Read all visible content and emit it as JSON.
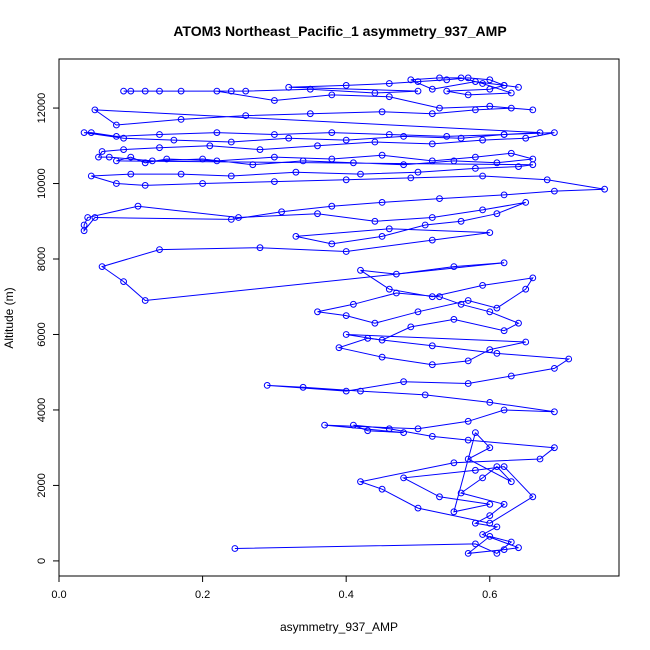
{
  "chart_data": {
    "type": "scatter",
    "title": "ATOM3 Northeast_Pacific_1 asymmetry_937_AMP",
    "xlabel": "asymmetry_937_AMP",
    "ylabel": "Altitude (m)",
    "xlim": [
      0.0,
      0.78
    ],
    "ylim": [
      -400,
      13300
    ],
    "xticks": [
      0.0,
      0.2,
      0.4,
      0.6
    ],
    "xtick_labels": [
      "0.0",
      "0.2",
      "0.4",
      "0.6"
    ],
    "yticks": [
      0,
      2000,
      4000,
      6000,
      8000,
      10000,
      12000
    ],
    "ytick_labels": [
      "0",
      "2000",
      "4000",
      "6000",
      "8000",
      "10000",
      "12000"
    ],
    "grid": false,
    "legend": "none",
    "color": "#0000ff",
    "markers": "open circles connected by lines",
    "series": [
      {
        "x": [
          0.245,
          0.58,
          0.61,
          0.63,
          0.6,
          0.57,
          0.62,
          0.64,
          0.59,
          0.61,
          0.58,
          0.6,
          0.62,
          0.56,
          0.59,
          0.61,
          0.63,
          0.57,
          0.6,
          0.58
        ],
        "y": [
          330,
          450,
          200,
          500,
          650,
          200,
          300,
          350,
          700,
          900,
          1000,
          1200,
          1500,
          1800,
          2200,
          2500,
          2100,
          2700,
          3000,
          3400
        ]
      },
      {
        "x": [
          0.55,
          0.6,
          0.53,
          0.48,
          0.58,
          0.62,
          0.66,
          0.6,
          0.5,
          0.45,
          0.42,
          0.55,
          0.67,
          0.69,
          0.57,
          0.52,
          0.46,
          0.41,
          0.43,
          0.48
        ],
        "y": [
          1300,
          1500,
          1700,
          2200,
          2400,
          2500,
          1700,
          1000,
          1400,
          1900,
          2100,
          2600,
          2700,
          3000,
          3200,
          3300,
          3500,
          3600,
          3450,
          3400
        ]
      },
      {
        "x": [
          0.37,
          0.5,
          0.57,
          0.62,
          0.69,
          0.6,
          0.51,
          0.42,
          0.34,
          0.29,
          0.4,
          0.48,
          0.57,
          0.63,
          0.69,
          0.71,
          0.61,
          0.52,
          0.43,
          0.39,
          0.45,
          0.52,
          0.57,
          0.6,
          0.65
        ],
        "y": [
          3600,
          3500,
          3700,
          4000,
          3950,
          4200,
          4400,
          4500,
          4600,
          4650,
          4500,
          4750,
          4700,
          4900,
          5100,
          5350,
          5500,
          5700,
          5900,
          5650,
          5400,
          5200,
          5300,
          5600,
          5800
        ]
      },
      {
        "x": [
          0.4,
          0.45,
          0.49,
          0.55,
          0.62,
          0.64,
          0.6,
          0.56,
          0.53,
          0.47,
          0.41,
          0.36,
          0.4,
          0.44,
          0.5,
          0.57,
          0.61,
          0.65,
          0.66,
          0.59,
          0.52,
          0.46,
          0.42,
          0.47,
          0.55,
          0.62
        ],
        "y": [
          6000,
          5850,
          6200,
          6400,
          6100,
          6300,
          6600,
          6800,
          7000,
          7100,
          6800,
          6600,
          6500,
          6300,
          6600,
          6900,
          6700,
          7200,
          7500,
          7300,
          7000,
          7200,
          7700,
          7600,
          7800,
          7900
        ]
      },
      {
        "x": [
          0.12,
          0.09,
          0.06,
          0.14,
          0.28,
          0.4,
          0.52,
          0.6,
          0.46,
          0.33,
          0.38,
          0.45,
          0.51,
          0.56,
          0.61,
          0.65,
          0.59,
          0.52,
          0.44,
          0.36,
          0.25,
          0.11,
          0.04,
          0.035,
          0.035,
          0.05
        ],
        "y": [
          6900,
          7400,
          7800,
          8250,
          8300,
          8200,
          8500,
          8700,
          8800,
          8600,
          8400,
          8600,
          8900,
          9000,
          9200,
          9500,
          9300,
          9100,
          9000,
          9200,
          9100,
          9400,
          9100,
          8900,
          8750,
          9100
        ]
      },
      {
        "x": [
          0.24,
          0.31,
          0.38,
          0.45,
          0.53,
          0.62,
          0.69,
          0.76,
          0.68,
          0.59,
          0.49,
          0.4,
          0.3,
          0.2,
          0.12,
          0.08,
          0.045,
          0.1,
          0.17,
          0.24,
          0.33,
          0.42,
          0.5,
          0.58,
          0.64,
          0.66
        ],
        "y": [
          9050,
          9250,
          9400,
          9500,
          9600,
          9700,
          9800,
          9850,
          10100,
          10200,
          10150,
          10100,
          10050,
          10000,
          9950,
          10000,
          10200,
          10250,
          10250,
          10200,
          10300,
          10250,
          10300,
          10400,
          10450,
          10500
        ]
      },
      {
        "x": [
          0.08,
          0.1,
          0.12,
          0.15,
          0.22,
          0.3,
          0.38,
          0.45,
          0.52,
          0.58,
          0.63,
          0.66,
          0.61,
          0.55,
          0.48,
          0.41,
          0.34,
          0.27,
          0.2,
          0.13,
          0.07,
          0.055,
          0.06,
          0.09,
          0.14,
          0.21
        ],
        "y": [
          10600,
          10700,
          10550,
          10650,
          10600,
          10700,
          10650,
          10750,
          10600,
          10700,
          10800,
          10650,
          10550,
          10600,
          10500,
          10550,
          10600,
          10500,
          10650,
          10600,
          10700,
          10700,
          10850,
          10900,
          10950,
          11000
        ]
      },
      {
        "x": [
          0.28,
          0.36,
          0.44,
          0.52,
          0.59,
          0.65,
          0.69,
          0.62,
          0.54,
          0.46,
          0.38,
          0.3,
          0.22,
          0.14,
          0.08,
          0.045,
          0.035,
          0.09,
          0.16,
          0.24,
          0.32,
          0.4,
          0.48,
          0.56,
          0.62,
          0.67
        ],
        "y": [
          10900,
          11000,
          11100,
          11050,
          11150,
          11200,
          11350,
          11300,
          11250,
          11300,
          11350,
          11300,
          11350,
          11300,
          11250,
          11350,
          11350,
          11200,
          11150,
          11100,
          11200,
          11150,
          11250,
          11200,
          11300,
          11350
        ]
      },
      {
        "x": [
          0.05,
          0.08,
          0.17,
          0.26,
          0.35,
          0.45,
          0.52,
          0.58,
          0.63,
          0.66,
          0.6,
          0.53,
          0.46,
          0.38,
          0.3,
          0.22,
          0.14,
          0.09,
          0.1,
          0.12,
          0.17,
          0.24,
          0.26,
          0.35,
          0.44,
          0.5
        ],
        "y": [
          11950,
          11550,
          11700,
          11800,
          11850,
          11900,
          11850,
          11950,
          12000,
          11950,
          12050,
          12000,
          12300,
          12350,
          12200,
          12450,
          12450,
          12450,
          12450,
          12450,
          12450,
          12450,
          12450,
          12500,
          12400,
          12450
        ]
      },
      {
        "x": [
          0.32,
          0.4,
          0.46,
          0.5,
          0.54,
          0.57,
          0.6,
          0.62,
          0.64,
          0.58,
          0.52,
          0.49,
          0.53,
          0.56,
          0.59,
          0.63,
          0.57,
          0.54,
          0.6,
          0.62
        ],
        "y": [
          12550,
          12600,
          12650,
          12700,
          12750,
          12800,
          12750,
          12600,
          12550,
          12700,
          12500,
          12750,
          12800,
          12800,
          12650,
          12400,
          12350,
          12450,
          12500,
          12600
        ]
      }
    ]
  }
}
